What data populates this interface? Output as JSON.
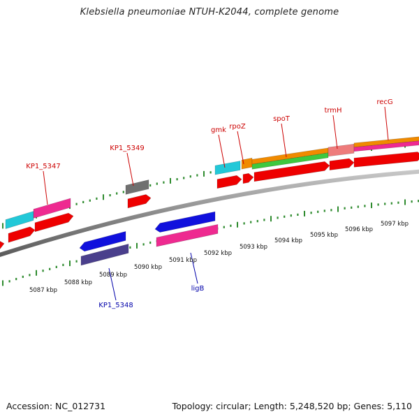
{
  "header": {
    "title": "Klebsiella pneumoniae NTUH-K2044, complete genome"
  },
  "footer": {
    "accession": "Accession: NC_012731",
    "summary": "Topology: circular; Length: 5,248,520 bp; Genes: 5,110"
  },
  "colors": {
    "backbone": "#8a8a8a",
    "tick": "#2e8b2e",
    "gene_red": "#ee0000",
    "pink": "#ee2a90",
    "cyan": "#22c8d8",
    "blue": "#1010dd",
    "slate": "#4a3f8c",
    "gray": "#707070",
    "orange": "#f08a00",
    "green": "#3ec83e",
    "salmon": "#ee7b7b",
    "label_red": "#cc0000",
    "label_blue": "#0000aa"
  },
  "scale_labels": [
    "5087 kbp",
    "5088 kbp",
    "5089 kbp",
    "5090 kbp",
    "5091 kbp",
    "5092 kbp",
    "5093 kbp",
    "5094 kbp",
    "5095 kbp",
    "5096 kbp",
    "5097 kbp"
  ],
  "gene_labels_forward": [
    "KP1_5347",
    "KP1_5349",
    "gmk",
    "rpoZ",
    "spoT",
    "trmH",
    "recG"
  ],
  "gene_labels_reverse": [
    "KP1_5348",
    "ligB"
  ]
}
